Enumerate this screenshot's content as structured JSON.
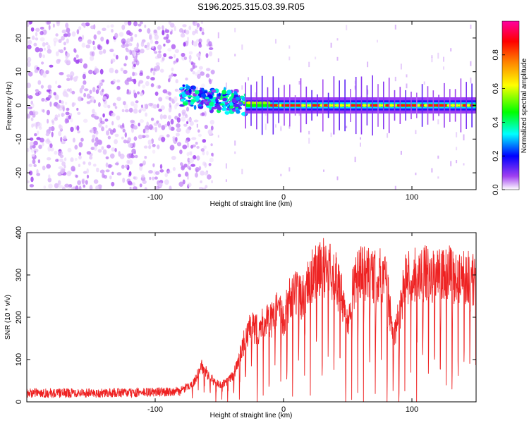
{
  "figure": {
    "title": "S196.2025.315.03.39.R05"
  },
  "chart_data": [
    {
      "type": "heatmap",
      "title": "",
      "xlabel": "Height of straight line (km)",
      "ylabel": "Frequency (Hz)",
      "xlim": [
        -200,
        150
      ],
      "ylim": [
        -25,
        25
      ],
      "xticks": [
        -100,
        0,
        100
      ],
      "xtick_labels": [
        "-100",
        "0",
        "100"
      ],
      "yticks": [
        -20,
        -10,
        0,
        10,
        20
      ],
      "ytick_labels": [
        "-20",
        "-10",
        "0",
        "10",
        "20"
      ],
      "colorbar": {
        "label": "Normalized spectral amplitude",
        "range": [
          0,
          1
        ],
        "ticks": [
          0.0,
          0.2,
          0.4,
          0.6,
          0.8
        ],
        "tick_labels": [
          "0.0",
          "0.2",
          "0.4",
          "0.6",
          "0.8"
        ],
        "colormap": [
          "#ffffff",
          "#a040f0",
          "#0000ff",
          "#00ffff",
          "#00ff00",
          "#ffff00",
          "#ff8000",
          "#ff0000",
          "#ff00a0"
        ]
      },
      "features": [
        {
          "name": "broadband noise region",
          "x_range": [
            -200,
            -75
          ],
          "freq_range": [
            -25,
            25
          ],
          "amplitude": 0.1
        },
        {
          "name": "transition cluster",
          "x_range": [
            -80,
            -30
          ],
          "freq_center": 3,
          "amplitude": 0.35
        },
        {
          "name": "narrowband carrier line",
          "x_range": [
            -30,
            150
          ],
          "freq_center": 0,
          "amplitude": 0.85
        }
      ]
    },
    {
      "type": "line",
      "title": "",
      "xlabel": "Height of straight line (km)",
      "ylabel": "SNR (10 * v/v)",
      "xlim": [
        -200,
        150
      ],
      "ylim": [
        0,
        400
      ],
      "xticks": [
        -100,
        0,
        100
      ],
      "xtick_labels": [
        "-100",
        "0",
        "100"
      ],
      "yticks": [
        0,
        100,
        200,
        300,
        400
      ],
      "ytick_labels": [
        "0",
        "100",
        "200",
        "300",
        "400"
      ],
      "line_color": "#ee2222",
      "series": [
        {
          "name": "SNR",
          "x": [
            -200,
            -190,
            -180,
            -170,
            -160,
            -150,
            -140,
            -130,
            -120,
            -110,
            -100,
            -90,
            -80,
            -70,
            -65,
            -60,
            -55,
            -50,
            -45,
            -40,
            -35,
            -30,
            -25,
            -20,
            -15,
            -10,
            -5,
            0,
            5,
            10,
            15,
            20,
            25,
            30,
            35,
            40,
            45,
            50,
            55,
            60,
            65,
            70,
            75,
            80,
            85,
            90,
            95,
            100,
            105,
            110,
            115,
            120,
            125,
            130,
            135,
            140,
            145,
            150
          ],
          "values": [
            20,
            22,
            20,
            21,
            22,
            21,
            20,
            22,
            21,
            22,
            23,
            24,
            25,
            45,
            85,
            70,
            50,
            40,
            45,
            60,
            95,
            150,
            175,
            170,
            195,
            190,
            215,
            200,
            245,
            255,
            245,
            290,
            305,
            315,
            320,
            300,
            250,
            190,
            280,
            300,
            305,
            290,
            300,
            295,
            150,
            205,
            295,
            300,
            300,
            305,
            290,
            300,
            295,
            305,
            290,
            300,
            295,
            285
          ]
        }
      ]
    }
  ]
}
